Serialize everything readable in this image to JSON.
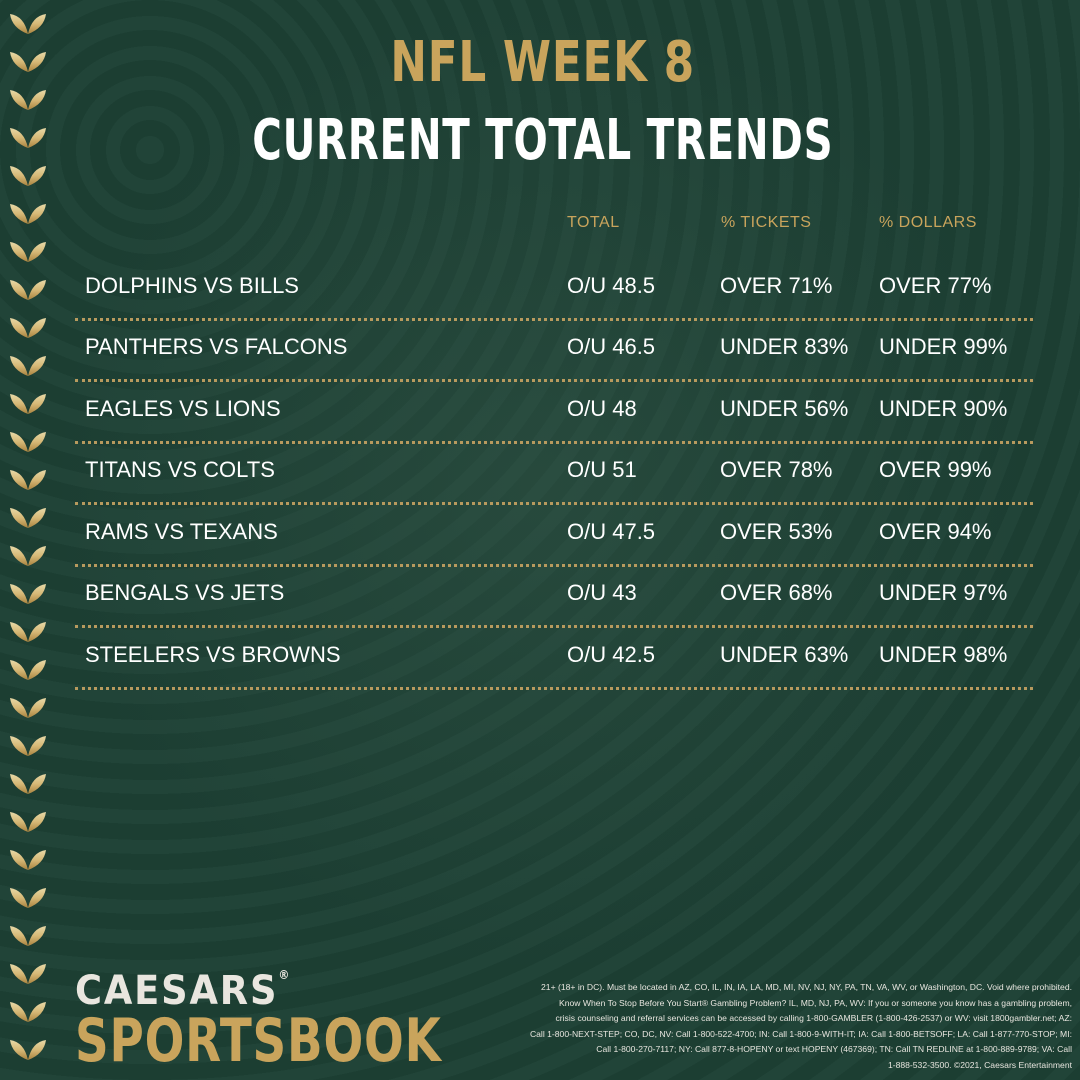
{
  "header": {
    "title_line1": "NFL WEEK 8",
    "title_line2": "CURRENT TOTAL TRENDS"
  },
  "columns": {
    "total": "TOTAL",
    "tickets": "% TICKETS",
    "dollars": "% DOLLARS"
  },
  "rows": [
    {
      "matchup": "DOLPHINS VS BILLS",
      "total": "O/U 48.5",
      "tickets": "OVER 71%",
      "dollars": "OVER 77%"
    },
    {
      "matchup": "PANTHERS VS FALCONS",
      "total": "O/U 46.5",
      "tickets": "UNDER 83%",
      "dollars": "UNDER 99%"
    },
    {
      "matchup": "EAGLES VS LIONS",
      "total": "O/U 48",
      "tickets": "UNDER 56%",
      "dollars": "UNDER 90%"
    },
    {
      "matchup": "TITANS VS COLTS",
      "total": "O/U 51",
      "tickets": "OVER 78%",
      "dollars": "OVER 99%"
    },
    {
      "matchup": "RAMS VS TEXANS",
      "total": "O/U 47.5",
      "tickets": "OVER 53%",
      "dollars": "OVER 94%"
    },
    {
      "matchup": "BENGALS VS JETS",
      "total": "O/U 43",
      "tickets": "OVER 68%",
      "dollars": "UNDER 97%"
    },
    {
      "matchup": "STEELERS VS BROWNS",
      "total": "O/U 42.5",
      "tickets": "UNDER 63%",
      "dollars": "UNDER 98%"
    }
  ],
  "brand": {
    "line1": "CAESARS",
    "registered": "®",
    "line2": "SPORTSBOOK"
  },
  "disclaimer": {
    "line1": "21+ (18+ in DC). Must be located in AZ, CO, IL, IN, IA, LA, MD, MI, NV, NJ, NY, PA, TN, VA, WV, or Washington, DC. Void where prohibited.",
    "line2": "Know When To Stop Before You Start® Gambling Problem? IL, MD, NJ, PA, WV: If you or someone you know has a gambling problem,",
    "line3": "crisis counseling and referral services can be accessed by calling 1-800-GAMBLER (1-800-426-2537) or WV: visit 1800gambler.net; AZ:",
    "line4": "Call 1-800-NEXT-STEP; CO, DC, NV: Call 1-800-522-4700; IN: Call 1-800-9-WITH-IT; IA: Call 1-800-BETSOFF; LA: Call 1-877-770-STOP; MI:",
    "line5": "Call 1-800-270-7117; NY: Call 877-8-HOPENY or text HOPENY (467369); TN: Call TN REDLINE at 1-800-889-9789; VA: Call",
    "line6": "1-888-532-3500. ©2021, Caesars Entertainment"
  },
  "colors": {
    "background": "#1d4034",
    "gold": "#c9a45c",
    "text": "#ffffff"
  }
}
